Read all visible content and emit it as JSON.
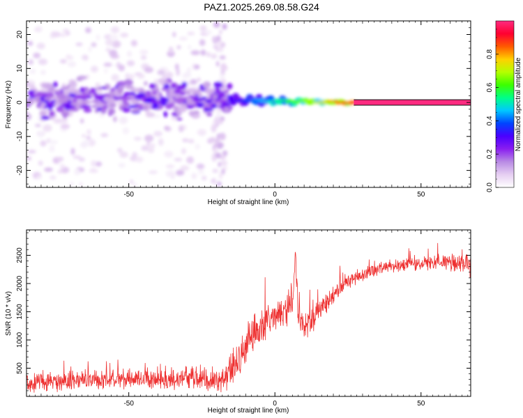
{
  "title": "PAZ1.2025.269.08.58.G24",
  "chart_data": [
    {
      "type": "heatmap",
      "xlabel": "Height of straight line (km)",
      "ylabel": "Frequency (Hz)",
      "xlim": [
        -85,
        67
      ],
      "ylim": [
        -25,
        24
      ],
      "xticks": [
        -50,
        0,
        50
      ],
      "yticks": [
        -20,
        -10,
        0,
        10,
        20
      ],
      "colorbar": {
        "label": "Normalized spectral amplitude",
        "range": [
          0,
          1
        ],
        "ticks": [
          0.0,
          0.2,
          0.4,
          0.6,
          0.8
        ],
        "colormap": [
          "#ffffff",
          "#e6cff2",
          "#b98be4",
          "#8a1ef0",
          "#4a00ff",
          "#0044ff",
          "#00c8ff",
          "#00ff88",
          "#3cff00",
          "#b4ff00",
          "#ffd000",
          "#ff5a00",
          "#ff0030",
          "#ff2a80"
        ]
      },
      "features": [
        {
          "region": "scattered weak noise",
          "x_range": [
            -85,
            -20
          ],
          "y_range": [
            -25,
            22
          ],
          "amplitude": [
            0.02,
            0.1
          ]
        },
        {
          "region": "broadband cluster",
          "x_range": [
            -85,
            -15
          ],
          "y_range": [
            -6,
            8
          ],
          "amplitude": [
            0.1,
            0.3
          ]
        },
        {
          "region": "spike near -20 km",
          "x_range": [
            -21,
            -17
          ],
          "y_range": [
            -24,
            23
          ],
          "amplitude": [
            0.02,
            0.12
          ]
        },
        {
          "region": "narrowing band",
          "x_range": [
            -15,
            27
          ],
          "y_range": [
            -1.5,
            2
          ],
          "amplitude": [
            0.3,
            0.9
          ]
        },
        {
          "region": "strong line",
          "x_range": [
            27,
            67
          ],
          "y_range": [
            -0.6,
            0.6
          ],
          "amplitude": [
            0.9,
            1.0
          ]
        }
      ]
    },
    {
      "type": "line",
      "xlabel": "Height of straight line (km)",
      "ylabel": "SNR (10 * v/v)",
      "xlim": [
        -85,
        67
      ],
      "ylim": [
        0,
        2950
      ],
      "xticks": [
        -50,
        0,
        50
      ],
      "yticks": [
        500,
        1000,
        1500,
        2000,
        2500
      ],
      "line_color": "#ee3030",
      "series": [
        {
          "x": [
            -85,
            -80,
            -75,
            -70,
            -65,
            -60,
            -55,
            -50,
            -45,
            -40,
            -35,
            -30,
            -25,
            -20,
            -17,
            -15,
            -12,
            -10,
            -8,
            -5,
            -2,
            0,
            2,
            4,
            6,
            7,
            8,
            10,
            12,
            15,
            20,
            25,
            30,
            35,
            40,
            45,
            50,
            55,
            60,
            65,
            67
          ],
          "y": [
            220,
            250,
            260,
            270,
            280,
            300,
            290,
            300,
            300,
            290,
            300,
            320,
            300,
            280,
            300,
            500,
            700,
            900,
            1000,
            1200,
            1350,
            1400,
            1500,
            1550,
            1650,
            2500,
            1300,
            1300,
            1350,
            1500,
            1800,
            2050,
            2150,
            2250,
            2300,
            2350,
            2350,
            2380,
            2380,
            2350,
            2300
          ],
          "noise": [
            160,
            170,
            180,
            180,
            180,
            180,
            180,
            190,
            190,
            190,
            200,
            210,
            200,
            200,
            250,
            300,
            350,
            380,
            380,
            350,
            320,
            300,
            280,
            280,
            280,
            200,
            280,
            260,
            250,
            220,
            180,
            150,
            130,
            120,
            120,
            120,
            120,
            130,
            150,
            180,
            200
          ]
        }
      ]
    }
  ]
}
